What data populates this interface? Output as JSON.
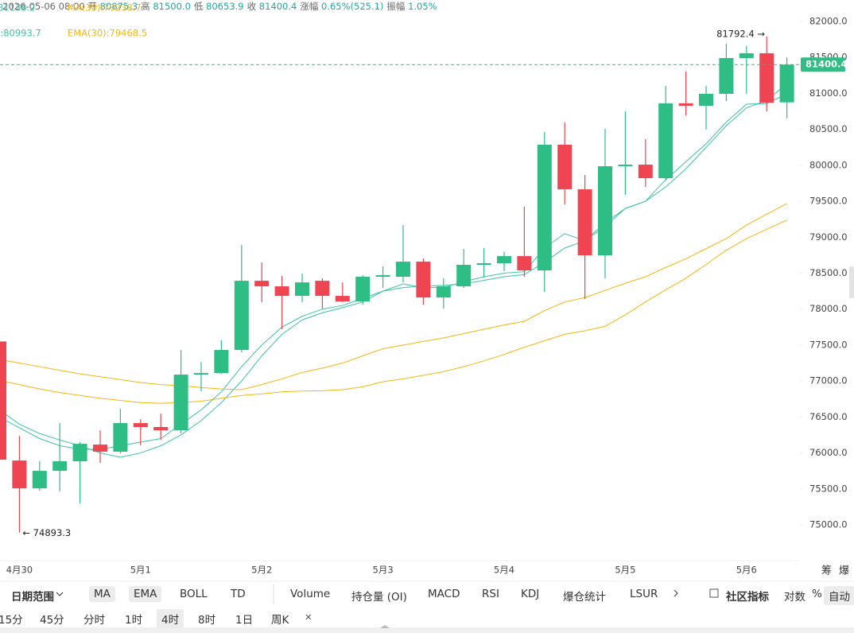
{
  "header": {
    "time": "2026-05-06 08:00",
    "items": [
      {
        "k": "开",
        "v": "80875.3"
      },
      {
        "k": "高",
        "v": "81500.0"
      },
      {
        "k": "低",
        "v": "80653.9"
      },
      {
        "k": "收",
        "v": "81400.4"
      },
      {
        "k": "涨幅",
        "v": "0.65%(525.1)"
      },
      {
        "k": "振幅",
        "v": "1.05%"
      }
    ]
  },
  "chart_data": {
    "type": "candlestick",
    "categories": [
      null,
      "4月30",
      null,
      null,
      null,
      null,
      null,
      "5月1",
      null,
      null,
      null,
      null,
      null,
      "5月2",
      null,
      null,
      null,
      null,
      null,
      "5月3",
      null,
      null,
      null,
      null,
      null,
      "5月4",
      null,
      null,
      null,
      null,
      null,
      "5月5",
      null,
      null,
      null,
      null,
      null,
      "5月6",
      null,
      null
    ],
    "open": [
      77550,
      75895,
      75508,
      75751,
      75884,
      76116,
      76017,
      76415,
      76360,
      76315,
      77089,
      77111,
      77432,
      78394,
      78317,
      78184,
      78394,
      78184,
      78107,
      78450,
      78450,
      78660,
      78162,
      78317,
      78616,
      78638,
      78737,
      78538,
      80286,
      79666,
      78748,
      79987,
      80009,
      79821,
      80861,
      80828,
      80994,
      81491,
      81558,
      80875.3
    ],
    "high": [
      77600,
      76238,
      75884,
      76415,
      76150,
      76315,
      76614,
      76470,
      76547,
      77432,
      77266,
      77565,
      78892,
      78649,
      78461,
      78494,
      78428,
      78372,
      78472,
      78594,
      79169,
      78704,
      78428,
      78837,
      78850,
      78800,
      79423,
      80463,
      80595,
      79865,
      80507,
      80750,
      80363,
      81104,
      81303,
      81104,
      81690,
      81657,
      81792.4,
      81500.0
    ],
    "low": [
      75800,
      74893.3,
      75475,
      75464,
      75298,
      75862,
      75995,
      76105,
      76183,
      76271,
      76857,
      77100,
      77400,
      78096,
      77720,
      78096,
      78007,
      78096,
      78063,
      78295,
      78372,
      78063,
      78007,
      78295,
      78440,
      78530,
      78450,
      78240,
      79456,
      78140,
      78428,
      79589,
      79699,
      79790,
      80695,
      80496,
      80894,
      80994,
      80750,
      80653.9
    ],
    "close": [
      75906,
      75508,
      75751,
      75884,
      76127,
      76017,
      76415,
      76360,
      76315,
      77089,
      77111,
      77432,
      78394,
      78317,
      78184,
      78372,
      78184,
      78107,
      78450,
      78472,
      78660,
      78162,
      78317,
      78616,
      78638,
      78737,
      78538,
      80286,
      79666,
      78748,
      79987,
      80009,
      79821,
      80861,
      80828,
      80994,
      81491,
      81558,
      80870,
      81400.4
    ],
    "up_color": "#2ebd85",
    "down_color": "#ef4452",
    "series": [
      {
        "name": "MA(7):81138.2",
        "color": "#3cc2a8",
        "values": [
          76600,
          76400,
          76270,
          76180,
          76100,
          76000,
          75940,
          76000,
          76100,
          76250,
          76450,
          76700,
          77000,
          77350,
          77650,
          77850,
          77950,
          78020,
          78100,
          78250,
          78300,
          78320,
          78330,
          78350,
          78400,
          78450,
          78480,
          78650,
          78850,
          78950,
          79150,
          79400,
          79500,
          79700,
          79950,
          80250,
          80550,
          80800,
          80900,
          81138.2
        ]
      },
      {
        "name": "MA(30):79238.7",
        "color": "#f3b70f",
        "values": [
          77010,
          76950,
          76890,
          76840,
          76800,
          76760,
          76730,
          76700,
          76690,
          76700,
          76720,
          76760,
          76800,
          76820,
          76850,
          76860,
          76865,
          76880,
          76920,
          76990,
          77030,
          77080,
          77130,
          77200,
          77280,
          77370,
          77470,
          77560,
          77650,
          77700,
          77760,
          77920,
          78100,
          78270,
          78430,
          78620,
          78820,
          78980,
          79110,
          79238.7
        ]
      },
      {
        "name": "EMA(7):80993.7",
        "color": "#3cc2a8",
        "values": [
          76500,
          76350,
          76200,
          76100,
          76050,
          76050,
          76100,
          76150,
          76200,
          76400,
          76600,
          76850,
          77200,
          77500,
          77750,
          77900,
          78000,
          78050,
          78150,
          78250,
          78350,
          78300,
          78300,
          78380,
          78450,
          78500,
          78520,
          78850,
          79050,
          78950,
          79200,
          79400,
          79500,
          79800,
          80050,
          80300,
          80600,
          80850,
          80860,
          80993.7
        ]
      },
      {
        "name": "EMA(30):79468.5",
        "color": "#f3b70f",
        "values": [
          77300,
          77250,
          77200,
          77150,
          77100,
          77060,
          77020,
          76980,
          76950,
          76935,
          76910,
          76890,
          76880,
          76950,
          77030,
          77120,
          77180,
          77250,
          77350,
          77450,
          77500,
          77550,
          77600,
          77660,
          77720,
          77780,
          77830,
          77980,
          78100,
          78160,
          78260,
          78360,
          78450,
          78580,
          78700,
          78840,
          78980,
          79170,
          79320,
          79468.5
        ]
      }
    ],
    "ylim": [
      74600,
      82200
    ],
    "yticks": [
      {
        "value": 75000,
        "label": "75000.0"
      },
      {
        "value": 75500,
        "label": "75500.0"
      },
      {
        "value": 76000,
        "label": "76000.0"
      },
      {
        "value": 76500,
        "label": "76500.0"
      },
      {
        "value": 77000,
        "label": "77000.0"
      },
      {
        "value": 77500,
        "label": "77500.0"
      },
      {
        "value": 78000,
        "label": "78000.0"
      },
      {
        "value": 78500,
        "label": "78500.0"
      },
      {
        "value": 79000,
        "label": "79000.0"
      },
      {
        "value": 79500,
        "label": "79500.0"
      },
      {
        "value": 80000,
        "label": "80000.0"
      },
      {
        "value": 80500,
        "label": "80500.0"
      },
      {
        "value": 81000,
        "label": "81000.0"
      },
      {
        "value": 81500,
        "label": "81500.0"
      },
      {
        "value": 82000,
        "label": "82000.0"
      }
    ],
    "last_price": 81400.4,
    "annotations": [
      "81792.4 →",
      "← 74893.3"
    ]
  },
  "side_labels": [
    "筹",
    "爆"
  ],
  "toolbar": {
    "range": "日期范围",
    "indicators": [
      "MA",
      "EMA",
      "BOLL",
      "TD",
      "Volume",
      "持仓量 (OI)",
      "MACD",
      "RSI",
      "KDJ",
      "爆仓统计",
      "LSUR"
    ],
    "active": [
      true,
      true,
      false,
      false,
      false,
      false,
      false,
      false,
      false,
      false,
      false
    ],
    "community": "社区指标",
    "options": [
      "对数",
      "%",
      "自动"
    ]
  },
  "timeframes": {
    "items": [
      "15分",
      "45分",
      "分时",
      "1时",
      "4时",
      "8时",
      "1日",
      "周K"
    ],
    "active": 4
  }
}
